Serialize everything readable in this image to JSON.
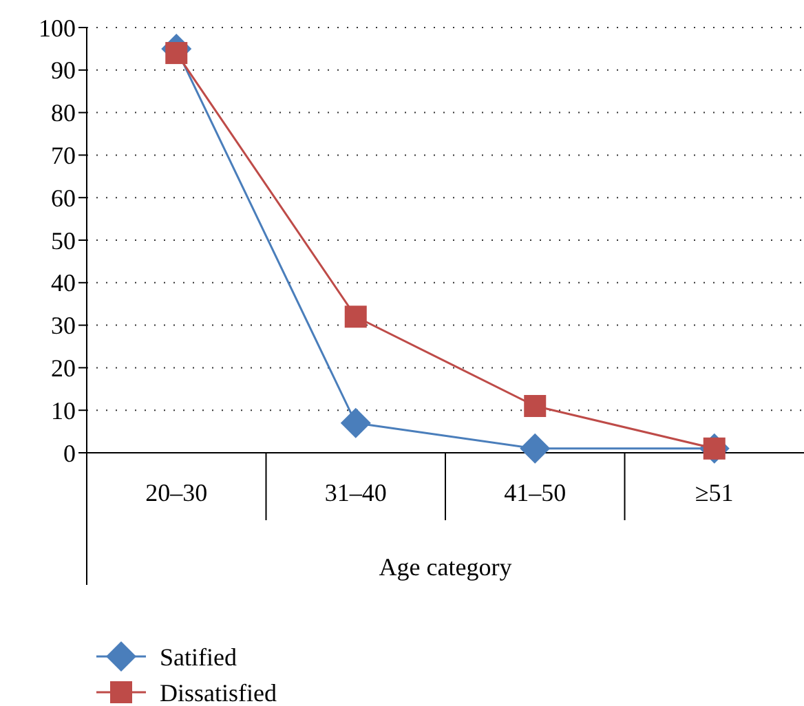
{
  "chart_data": {
    "type": "line",
    "xlabel": "Age category",
    "categories": [
      "20–30",
      "31–40",
      "41–50",
      "≥51"
    ],
    "series": [
      {
        "name": "Satified",
        "color": "#4a7ebb",
        "values": [
          95,
          7,
          1,
          1
        ],
        "marker": "diamond"
      },
      {
        "name": "Dissatisfied",
        "color": "#be4b48",
        "values": [
          94,
          32,
          11,
          1
        ],
        "marker": "square"
      }
    ],
    "ylim": [
      0,
      100
    ],
    "yticks": [
      0,
      10,
      20,
      30,
      40,
      50,
      60,
      70,
      80,
      90,
      100
    ],
    "grid": "y",
    "legend": "bottom left",
    "line_style": "solid"
  }
}
